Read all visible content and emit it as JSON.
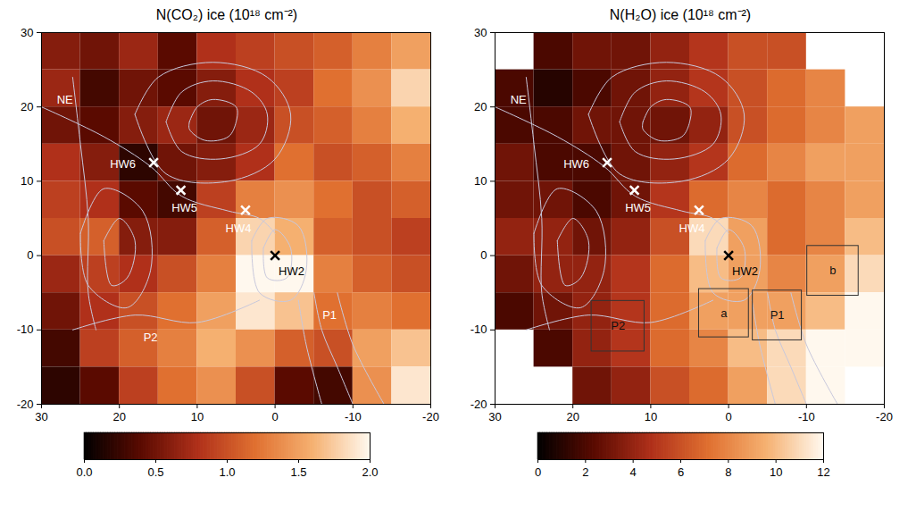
{
  "chart_data": [
    {
      "type": "heatmap",
      "title": "N(CO₂) ice (10¹⁸ cm⁻²)",
      "xlim": [
        30,
        -20
      ],
      "ylim": [
        -20,
        30
      ],
      "xticks": [
        30,
        20,
        10,
        0,
        -10,
        -20
      ],
      "yticks": [
        -20,
        -10,
        0,
        10,
        20,
        30
      ],
      "cells": {
        "x_edges": [
          30,
          25,
          20,
          15,
          10,
          5,
          0,
          -5,
          -10,
          -15,
          -20
        ],
        "y_edges": [
          30,
          25,
          20,
          15,
          10,
          5,
          0,
          -5,
          -10,
          -15,
          -20
        ],
        "values": [
          [
            0.6,
            0.5,
            0.7,
            0.4,
            0.8,
            0.9,
            1.0,
            1.1,
            1.3,
            1.5
          ],
          [
            0.7,
            0.3,
            0.5,
            0.4,
            0.6,
            0.8,
            0.9,
            1.2,
            1.4,
            1.8
          ],
          [
            0.5,
            0.4,
            0.6,
            0.7,
            0.5,
            0.7,
            1.0,
            1.1,
            1.3,
            1.6
          ],
          [
            0.8,
            0.6,
            0.2,
            0.5,
            0.6,
            0.8,
            1.2,
            1.0,
            1.1,
            1.3
          ],
          [
            0.9,
            0.8,
            0.4,
            0.3,
            0.9,
            1.3,
            1.4,
            1.2,
            1.0,
            1.1
          ],
          [
            1.0,
            1.1,
            0.6,
            0.6,
            1.1,
            1.8,
            1.6,
            1.1,
            1.0,
            0.9
          ],
          [
            0.7,
            0.9,
            0.8,
            1.0,
            1.3,
            2.0,
            2.0,
            1.3,
            1.1,
            1.0
          ],
          [
            0.5,
            0.8,
            1.0,
            1.2,
            1.5,
            1.9,
            1.7,
            1.2,
            1.3,
            1.2
          ],
          [
            0.3,
            0.9,
            1.1,
            1.3,
            1.6,
            1.4,
            1.1,
            1.0,
            1.5,
            1.7
          ],
          [
            0.2,
            0.4,
            0.9,
            1.2,
            1.4,
            1.0,
            0.4,
            0.3,
            1.4,
            1.9
          ]
        ]
      },
      "colorbar_range": [
        0,
        2
      ],
      "colorbar_ticks": [
        {
          "value": 0,
          "label": "0.0"
        },
        {
          "value": 0.5,
          "label": "0.5"
        },
        {
          "value": 1,
          "label": "1.0"
        },
        {
          "value": 1.5,
          "label": "1.5"
        },
        {
          "value": 2,
          "label": "2.0"
        }
      ],
      "contours": [
        [
          [
            11,
            18
          ],
          [
            10,
            20
          ],
          [
            8,
            21
          ],
          [
            5,
            20
          ],
          [
            5,
            18
          ],
          [
            6,
            16
          ],
          [
            9,
            15.5
          ],
          [
            11,
            17
          ],
          [
            11,
            18
          ]
        ],
        [
          [
            14,
            18
          ],
          [
            12,
            22
          ],
          [
            8,
            23.5
          ],
          [
            3,
            22
          ],
          [
            1,
            19
          ],
          [
            2,
            15
          ],
          [
            7,
            13
          ],
          [
            12,
            14
          ],
          [
            14,
            18
          ]
        ],
        [
          [
            18,
            19
          ],
          [
            15,
            24
          ],
          [
            8,
            26
          ],
          [
            1,
            24
          ],
          [
            -2,
            19
          ],
          [
            0,
            13
          ],
          [
            6,
            10
          ],
          [
            14,
            11
          ],
          [
            18,
            19
          ]
        ],
        [
          [
            22,
            2
          ],
          [
            20,
            5
          ],
          [
            18,
            2
          ],
          [
            19,
            -3
          ],
          [
            21,
            -4
          ],
          [
            22,
            2
          ]
        ],
        [
          [
            25,
            3
          ],
          [
            22,
            9
          ],
          [
            17,
            6
          ],
          [
            16,
            -2
          ],
          [
            19,
            -7
          ],
          [
            24,
            -4
          ],
          [
            25,
            3
          ]
        ],
        [
          [
            26,
            24
          ],
          [
            25,
            15
          ],
          [
            24,
            5
          ],
          [
            24,
            -5
          ],
          [
            23,
            -10
          ]
        ],
        [
          [
            30,
            20
          ],
          [
            22,
            16
          ],
          [
            16,
            12
          ],
          [
            12,
            8
          ],
          [
            6,
            6
          ],
          [
            2,
            5
          ],
          [
            0,
            3
          ]
        ],
        [
          [
            1.5,
            1
          ],
          [
            0,
            3.5
          ],
          [
            -2,
            1
          ],
          [
            -1.5,
            -3
          ],
          [
            1,
            -3
          ],
          [
            1.5,
            1
          ]
        ],
        [
          [
            3,
            2
          ],
          [
            1,
            5
          ],
          [
            -3,
            4
          ],
          [
            -4,
            -2
          ],
          [
            -2,
            -6
          ],
          [
            2,
            -5
          ],
          [
            3,
            2
          ]
        ],
        [
          [
            -5,
            -5
          ],
          [
            -6,
            -10
          ],
          [
            -8,
            -15
          ],
          [
            -10,
            -20
          ]
        ],
        [
          [
            -3,
            -6
          ],
          [
            -4,
            -12
          ],
          [
            -6,
            -20
          ]
        ],
        [
          [
            -8,
            -5
          ],
          [
            -10,
            -12
          ],
          [
            -14,
            -20
          ]
        ],
        [
          [
            2,
            -6
          ],
          [
            10,
            -9
          ],
          [
            18,
            -8
          ],
          [
            26,
            -10
          ]
        ]
      ],
      "sources": [
        {
          "name": "HW6",
          "x": 15.6,
          "y": 12.5,
          "color": "white"
        },
        {
          "name": "HW5",
          "x": 12.1,
          "y": 8.8,
          "color": "white"
        },
        {
          "name": "HW4",
          "x": 3.8,
          "y": 6.1,
          "color": "white"
        },
        {
          "name": "HW2",
          "x": 0,
          "y": 0,
          "color": "black"
        }
      ],
      "labels": [
        {
          "text": "NE",
          "x": 27,
          "y": 21
        },
        {
          "text": "P2",
          "x": 16,
          "y": -11
        },
        {
          "text": "P1",
          "x": -7,
          "y": -8
        }
      ],
      "boxes": []
    },
    {
      "type": "heatmap",
      "title": "N(H₂O) ice (10¹⁸ cm⁻²)",
      "xlim": [
        30,
        -20
      ],
      "ylim": [
        -20,
        30
      ],
      "xticks": [
        30,
        20,
        10,
        0,
        -10,
        -20
      ],
      "yticks": [
        -20,
        -10,
        0,
        10,
        20,
        30
      ],
      "cells": {
        "x_edges": [
          30,
          25,
          20,
          15,
          10,
          5,
          0,
          -5,
          -10,
          -15,
          -20
        ],
        "y_edges": [
          30,
          25,
          20,
          15,
          10,
          5,
          0,
          -5,
          -10,
          -15,
          -20
        ],
        "values": [
          [
            null,
            2,
            3,
            3,
            4,
            5,
            6,
            6,
            null,
            null
          ],
          [
            2,
            1,
            2,
            3,
            4,
            5,
            6,
            7,
            8,
            null
          ],
          [
            2,
            2,
            3,
            3,
            3,
            4,
            6,
            7,
            8,
            9
          ],
          [
            3,
            2,
            2,
            3,
            4,
            5,
            7,
            8,
            9,
            9
          ],
          [
            3,
            3,
            2,
            3,
            5,
            7,
            8,
            7,
            8,
            9
          ],
          [
            4,
            4,
            3,
            4,
            6,
            11,
            9,
            7,
            8,
            10
          ],
          [
            3,
            4,
            4,
            5,
            7,
            10,
            9,
            8,
            9,
            11
          ],
          [
            2,
            3,
            4,
            5,
            7,
            9,
            9,
            9,
            10,
            12
          ],
          [
            null,
            2,
            4,
            5,
            7,
            8,
            10,
            11,
            12,
            12
          ],
          [
            null,
            null,
            3,
            4,
            6,
            7,
            9,
            11,
            12,
            null
          ]
        ]
      },
      "colorbar_range": [
        0,
        12
      ],
      "colorbar_ticks": [
        0,
        2,
        4,
        6,
        8,
        10,
        12
      ],
      "contours": [
        [
          [
            11,
            18
          ],
          [
            10,
            20
          ],
          [
            8,
            21
          ],
          [
            5,
            20
          ],
          [
            5,
            18
          ],
          [
            6,
            16
          ],
          [
            9,
            15.5
          ],
          [
            11,
            17
          ],
          [
            11,
            18
          ]
        ],
        [
          [
            14,
            18
          ],
          [
            12,
            22
          ],
          [
            8,
            23.5
          ],
          [
            3,
            22
          ],
          [
            1,
            19
          ],
          [
            2,
            15
          ],
          [
            7,
            13
          ],
          [
            12,
            14
          ],
          [
            14,
            18
          ]
        ],
        [
          [
            18,
            19
          ],
          [
            15,
            24
          ],
          [
            8,
            26
          ],
          [
            1,
            24
          ],
          [
            -2,
            19
          ],
          [
            0,
            13
          ],
          [
            6,
            10
          ],
          [
            14,
            11
          ],
          [
            18,
            19
          ]
        ],
        [
          [
            22,
            2
          ],
          [
            20,
            5
          ],
          [
            18,
            2
          ],
          [
            19,
            -3
          ],
          [
            21,
            -4
          ],
          [
            22,
            2
          ]
        ],
        [
          [
            25,
            3
          ],
          [
            22,
            9
          ],
          [
            17,
            6
          ],
          [
            16,
            -2
          ],
          [
            19,
            -7
          ],
          [
            24,
            -4
          ],
          [
            25,
            3
          ]
        ],
        [
          [
            26,
            24
          ],
          [
            25,
            15
          ],
          [
            24,
            5
          ],
          [
            24,
            -5
          ],
          [
            23,
            -10
          ]
        ],
        [
          [
            30,
            20
          ],
          [
            22,
            16
          ],
          [
            16,
            12
          ],
          [
            12,
            8
          ],
          [
            6,
            6
          ],
          [
            2,
            5
          ],
          [
            0,
            3
          ]
        ],
        [
          [
            1.5,
            1
          ],
          [
            0,
            3.5
          ],
          [
            -2,
            1
          ],
          [
            -1.5,
            -3
          ],
          [
            1,
            -3
          ],
          [
            1.5,
            1
          ]
        ],
        [
          [
            3,
            2
          ],
          [
            1,
            5
          ],
          [
            -3,
            4
          ],
          [
            -4,
            -2
          ],
          [
            -2,
            -6
          ],
          [
            2,
            -5
          ],
          [
            3,
            2
          ]
        ],
        [
          [
            -5,
            -5
          ],
          [
            -6,
            -10
          ],
          [
            -8,
            -15
          ],
          [
            -10,
            -20
          ]
        ],
        [
          [
            -3,
            -6
          ],
          [
            -4,
            -12
          ],
          [
            -6,
            -20
          ]
        ],
        [
          [
            -8,
            -5
          ],
          [
            -10,
            -12
          ],
          [
            -14,
            -20
          ]
        ],
        [
          [
            2,
            -6
          ],
          [
            10,
            -9
          ],
          [
            18,
            -8
          ],
          [
            26,
            -10
          ]
        ]
      ],
      "sources": [
        {
          "name": "HW6",
          "x": 15.6,
          "y": 12.5,
          "color": "white"
        },
        {
          "name": "HW5",
          "x": 12.1,
          "y": 8.8,
          "color": "white"
        },
        {
          "name": "HW4",
          "x": 3.8,
          "y": 6.1,
          "color": "white"
        },
        {
          "name": "HW2",
          "x": 0,
          "y": 0,
          "color": "black"
        }
      ],
      "labels": [
        {
          "text": "NE",
          "x": 27,
          "y": 21
        }
      ],
      "boxes": [
        {
          "label": "P2",
          "x1": 17.6,
          "x2": 10.8,
          "y1": -6.1,
          "y2": -12.9
        },
        {
          "label": "a",
          "x1": 3.8,
          "x2": -2.6,
          "y1": -4.5,
          "y2": -11
        },
        {
          "label": "P1",
          "x1": -3.1,
          "x2": -9.4,
          "y1": -4.7,
          "y2": -11.4
        },
        {
          "label": "b",
          "x1": -10.1,
          "x2": -16.7,
          "y1": 1.3,
          "y2": -5.4
        }
      ]
    }
  ]
}
